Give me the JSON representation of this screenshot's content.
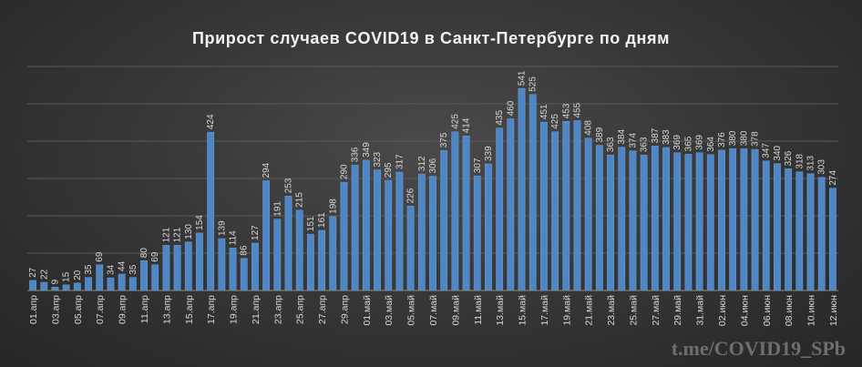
{
  "chart_data": {
    "type": "bar",
    "title": "Прирост  случаев  COVID19  в  Санкт-Петербурге  по  дням",
    "xlabel": "",
    "ylabel": "",
    "ylim": [
      0,
      600
    ],
    "grid": true,
    "legend": "none",
    "bar_color": "#4f86c6",
    "tick_labels": [
      "01.апр",
      "03.апр",
      "05.апр",
      "07.апр",
      "09.апр",
      "11.апр",
      "13.апр",
      "15.апр",
      "17.апр",
      "19.апр",
      "21.апр",
      "23.апр",
      "25.апр",
      "27.апр",
      "29.апр",
      "01.май",
      "03.май",
      "05.май",
      "07.май",
      "09.май",
      "11.май",
      "13.май",
      "15.май",
      "17.май",
      "19.май",
      "21.май",
      "23.май",
      "25.май",
      "27.май",
      "29.май",
      "31.май",
      "02.июн",
      "04.июн",
      "06.июн",
      "08.июн",
      "10.июн",
      "12.июн"
    ],
    "values": [
      27,
      22,
      9,
      15,
      20,
      35,
      69,
      34,
      44,
      35,
      80,
      69,
      121,
      121,
      130,
      154,
      424,
      139,
      114,
      86,
      127,
      294,
      191,
      253,
      215,
      151,
      161,
      198,
      290,
      336,
      349,
      323,
      295,
      317,
      226,
      312,
      306,
      375,
      425,
      414,
      307,
      339,
      435,
      460,
      541,
      525,
      451,
      425,
      453,
      455,
      408,
      389,
      363,
      384,
      374,
      363,
      387,
      383,
      369,
      365,
      369,
      364,
      376,
      380,
      380,
      378,
      347,
      340,
      326,
      318,
      313,
      303,
      274
    ]
  },
  "watermark": "t.me/COVID19_SPb"
}
